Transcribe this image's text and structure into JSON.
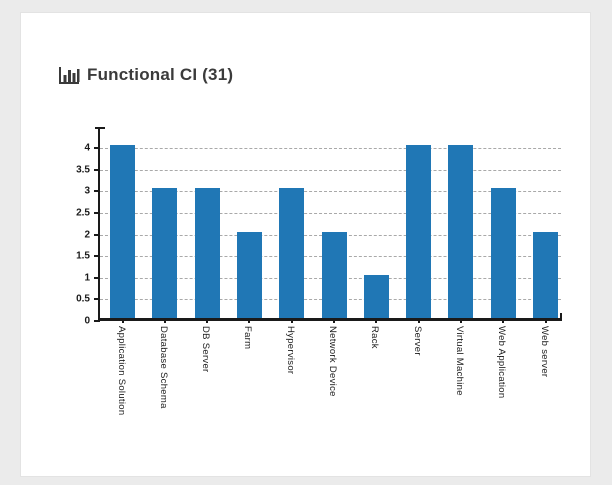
{
  "page": {
    "background_color": "#ebebeb",
    "card_background_color": "#ffffff"
  },
  "header": {
    "title": "Functional CI (31)",
    "icon": "bar-chart-icon",
    "title_color": "#3b3b3b"
  },
  "chart_data": {
    "type": "bar",
    "title": "Functional CI (31)",
    "categories": [
      "Application Solution",
      "Database Schema",
      "DB Server",
      "Farm",
      "Hypervisor",
      "Network Device",
      "Rack",
      "Server",
      "Virtual Machine",
      "Web Application",
      "Web server"
    ],
    "values": [
      4,
      3,
      3,
      2,
      3,
      2,
      1,
      4,
      4,
      3,
      2
    ],
    "total": 31,
    "xlabel": "",
    "ylabel": "",
    "ylim": [
      0,
      4.45
    ],
    "ytick_step": 0.5,
    "ytick_labels": [
      "0",
      "0.5",
      "1",
      "1.5",
      "2",
      "2.5",
      "3",
      "3.5",
      "4"
    ],
    "grid": "horizontal-dashed",
    "legend": "none",
    "bar_color": "#2077b5",
    "gridline_color": "#a9a9a9",
    "axis_color": "#1a1a1a",
    "x_label_rotation_deg": 90
  }
}
